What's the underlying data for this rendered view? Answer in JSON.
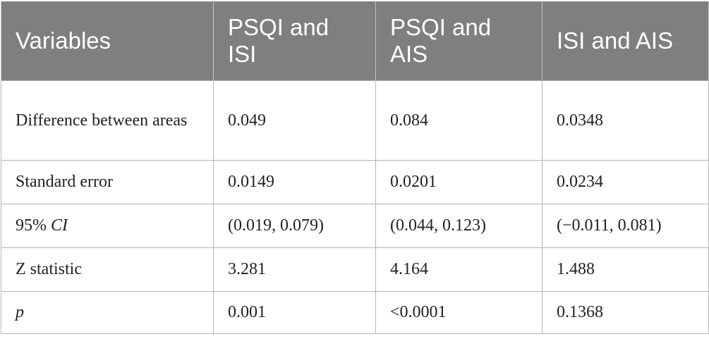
{
  "table": {
    "headers": [
      "Variables",
      "PSQI and ISI",
      "PSQI and AIS",
      "ISI and AIS"
    ],
    "rows": [
      {
        "label": "Difference between areas",
        "values": [
          "0.049",
          "0.084",
          "0.0348"
        ]
      },
      {
        "label": "Standard error",
        "values": [
          "0.0149",
          "0.0201",
          "0.0234"
        ]
      },
      {
        "label_prefix": "95% ",
        "label_italic": "CI",
        "values": [
          "(0.019, 0.079)",
          "(0.044, 0.123)",
          "(−0.011, 0.081)"
        ]
      },
      {
        "label": "Z statistic",
        "values": [
          "3.281",
          "4.164",
          "1.488"
        ]
      },
      {
        "label_italic": "p",
        "values": [
          "0.001",
          "<0.0001",
          "0.1368"
        ]
      }
    ]
  },
  "colors": {
    "header_bg": "#7d807f",
    "header_text": "#ffffff",
    "grid": "#b3b5b4"
  }
}
